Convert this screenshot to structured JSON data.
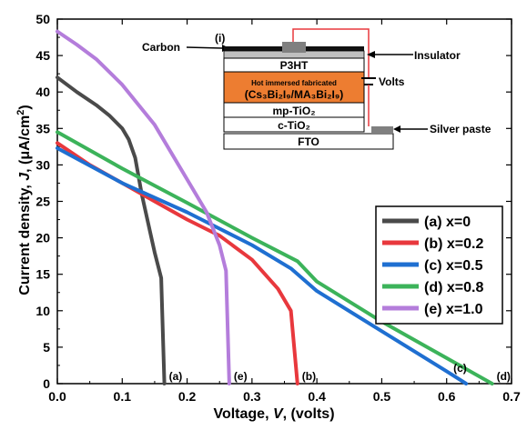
{
  "chart_data": {
    "type": "line",
    "xlabel_parts": [
      "Voltage, ",
      "V",
      ", (volts)"
    ],
    "ylabel_parts": [
      "Current density, ",
      "J",
      ", (",
      "μ",
      "A/cm",
      "2",
      ")"
    ],
    "xlim": [
      0,
      0.7
    ],
    "ylim": [
      0,
      50
    ],
    "xticks": [
      "0.0",
      "0.1",
      "0.2",
      "0.3",
      "0.4",
      "0.5",
      "0.6",
      "0.7"
    ],
    "yticks": [
      "0",
      "5",
      "10",
      "15",
      "20",
      "25",
      "30",
      "35",
      "40",
      "45",
      "50"
    ],
    "legend_position": "right",
    "series": [
      {
        "name": "(a) x=0",
        "color": "#4a4a4a",
        "end_label": "(a)",
        "points": [
          [
            0,
            42.0
          ],
          [
            0.03,
            40.0
          ],
          [
            0.06,
            38.2
          ],
          [
            0.08,
            36.8
          ],
          [
            0.1,
            35.0
          ],
          [
            0.11,
            33.5
          ],
          [
            0.12,
            31.0
          ],
          [
            0.13,
            26.0
          ],
          [
            0.14,
            22.0
          ],
          [
            0.15,
            18.0
          ],
          [
            0.16,
            14.5
          ],
          [
            0.165,
            0
          ]
        ]
      },
      {
        "name": "(b) x=0.2",
        "color": "#e8383d",
        "end_label": "(b)",
        "points": [
          [
            0,
            33.0
          ],
          [
            0.05,
            30.0
          ],
          [
            0.1,
            27.5
          ],
          [
            0.15,
            25.0
          ],
          [
            0.2,
            22.5
          ],
          [
            0.25,
            20.3
          ],
          [
            0.3,
            17.0
          ],
          [
            0.34,
            13.0
          ],
          [
            0.36,
            10.0
          ],
          [
            0.37,
            0
          ]
        ]
      },
      {
        "name": "(c) x=0.5",
        "color": "#1f6fd1",
        "end_label": "(c)",
        "points": [
          [
            0,
            32.3
          ],
          [
            0.1,
            27.5
          ],
          [
            0.2,
            23.5
          ],
          [
            0.3,
            19.0
          ],
          [
            0.36,
            15.8
          ],
          [
            0.4,
            12.7
          ],
          [
            0.5,
            7.2
          ],
          [
            0.6,
            1.7
          ],
          [
            0.63,
            0
          ]
        ]
      },
      {
        "name": "(d) x=0.8",
        "color": "#3cb35a",
        "end_label": "(d)",
        "points": [
          [
            0,
            34.5
          ],
          [
            0.1,
            29.5
          ],
          [
            0.2,
            24.8
          ],
          [
            0.3,
            20.0
          ],
          [
            0.37,
            16.8
          ],
          [
            0.4,
            14.0
          ],
          [
            0.5,
            8.5
          ],
          [
            0.6,
            3.5
          ],
          [
            0.67,
            0
          ]
        ]
      },
      {
        "name": "(e) x=1.0",
        "color": "#b47ddb",
        "end_label": "(e)",
        "points": [
          [
            0,
            48.3
          ],
          [
            0.03,
            46.5
          ],
          [
            0.06,
            44.5
          ],
          [
            0.1,
            41.0
          ],
          [
            0.15,
            35.5
          ],
          [
            0.2,
            28.0
          ],
          [
            0.23,
            23.5
          ],
          [
            0.25,
            19.0
          ],
          [
            0.26,
            15.5
          ],
          [
            0.265,
            0
          ]
        ]
      }
    ],
    "inset": {
      "label": "(i)",
      "carbon": "Carbon",
      "insulator": "Insulator",
      "volts": "Volts",
      "silver_paste": "Silver paste",
      "layers": {
        "p3ht": "P3HT",
        "absorber_top": "Hot immersed fabricated",
        "absorber_formula": "(Cs₃Bi₂I₉/MA₃Bi₂I₉)",
        "mp_tio2": "mp-TiO₂",
        "c_tio2": "c-TiO₂",
        "fto": "FTO"
      },
      "colors": {
        "absorber": "#ed7d31",
        "wire": "#e8383d",
        "contact": "#808080"
      }
    }
  }
}
